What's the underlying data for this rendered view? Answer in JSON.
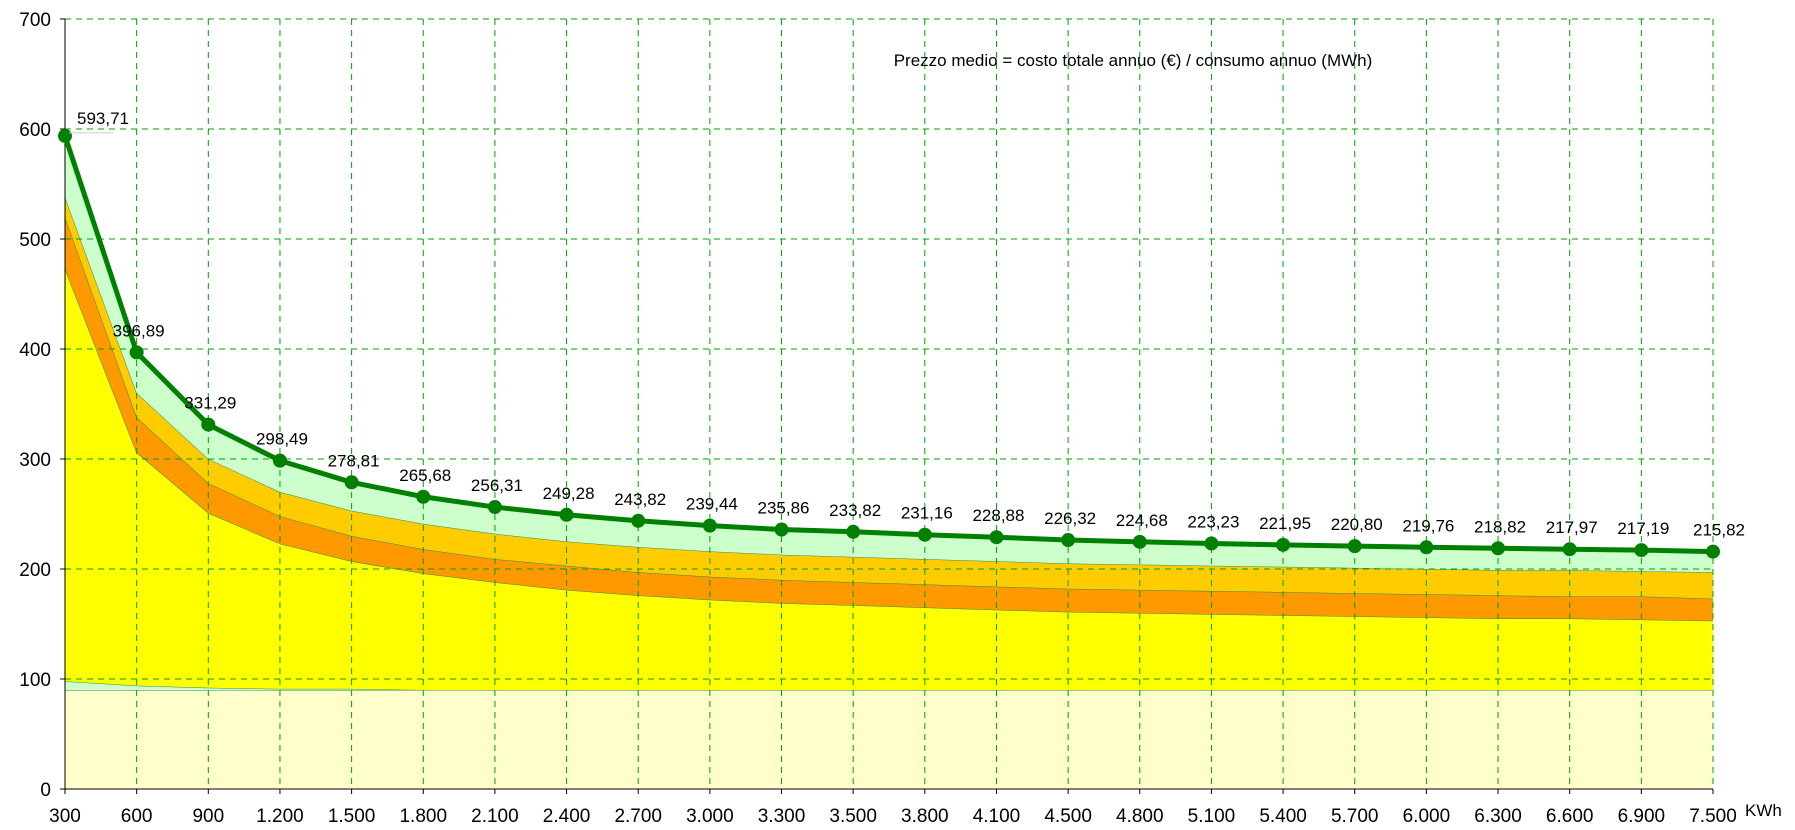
{
  "chart_data": {
    "type": "area",
    "note": "Prezzo medio = costo totale annuo (€) / consumo annuo (MWh)",
    "x_unit": "KWh",
    "ylim": [
      0,
      700
    ],
    "yticks": [
      "0",
      "100",
      "200",
      "300",
      "400",
      "500",
      "600",
      "700"
    ],
    "grid": true,
    "categories": [
      "300",
      "600",
      "900",
      "1.200",
      "1.500",
      "1.800",
      "2.100",
      "2.400",
      "2.700",
      "3.000",
      "3.300",
      "3.500",
      "3.800",
      "4.100",
      "4.500",
      "4.800",
      "5.100",
      "5.400",
      "5.700",
      "6.000",
      "6.300",
      "6.600",
      "6.900",
      "7.500"
    ],
    "stack_boundaries": [
      {
        "fill": "#FFFFCC",
        "values": [
          90,
          90,
          90,
          90,
          90,
          90,
          90,
          90,
          90,
          90,
          90,
          90,
          90,
          90,
          90,
          90,
          90,
          90,
          90,
          90,
          90,
          90,
          90,
          90
        ]
      },
      {
        "fill": "#CCFFCC",
        "values": [
          98,
          94,
          92,
          91,
          91,
          90,
          90,
          90,
          90,
          90,
          90,
          90,
          90,
          90,
          90,
          90,
          90,
          90,
          90,
          90,
          90,
          90,
          90,
          90
        ]
      },
      {
        "fill": "#FFFF00",
        "values": [
          473,
          306,
          251,
          223,
          207,
          196,
          188,
          181,
          176,
          172,
          169,
          167,
          165,
          163,
          161,
          160,
          159,
          158,
          157,
          156,
          155,
          155,
          154,
          153
        ]
      },
      {
        "fill": "#FF9900",
        "values": [
          520,
          338,
          278,
          248,
          230,
          218,
          209,
          203,
          197,
          193,
          190,
          188,
          186,
          184,
          182,
          181,
          180,
          179,
          178,
          177,
          176,
          175,
          175,
          173
        ]
      },
      {
        "fill": "#FFCC00",
        "values": [
          538,
          360,
          300,
          270,
          253,
          241,
          232,
          225,
          220,
          216,
          213,
          211,
          209,
          207,
          205,
          204,
          203,
          202,
          201,
          200,
          199,
          199,
          198,
          197
        ]
      },
      {
        "fill": "#CCFFCC",
        "values": [
          593.71,
          396.89,
          331.29,
          298.49,
          278.81,
          265.68,
          256.31,
          249.28,
          243.82,
          239.44,
          235.86,
          233.82,
          231.16,
          228.88,
          226.32,
          224.68,
          223.23,
          221.95,
          220.8,
          219.76,
          218.82,
          217.97,
          217.19,
          215.82
        ]
      }
    ],
    "series": [
      {
        "values": [
          593.71,
          396.89,
          331.29,
          298.49,
          278.81,
          265.68,
          256.31,
          249.28,
          243.82,
          239.44,
          235.86,
          233.82,
          231.16,
          228.88,
          226.32,
          224.68,
          223.23,
          221.95,
          220.8,
          219.76,
          218.82,
          217.97,
          217.19,
          215.82
        ],
        "labels": [
          "593,71",
          "396,89",
          "331,29",
          "298,49",
          "278,81",
          "265,68",
          "256,31",
          "249,28",
          "243,82",
          "239,44",
          "235,86",
          "233,82",
          "231,16",
          "228,88",
          "226,32",
          "224,68",
          "223,23",
          "221,95",
          "220,80",
          "219,76",
          "218,82",
          "217,97",
          "217,19",
          "215,82"
        ],
        "color": "#008000"
      }
    ],
    "colors": {
      "grid": "#00A000",
      "axis": "#000000",
      "edge": "#2E8B57"
    }
  }
}
